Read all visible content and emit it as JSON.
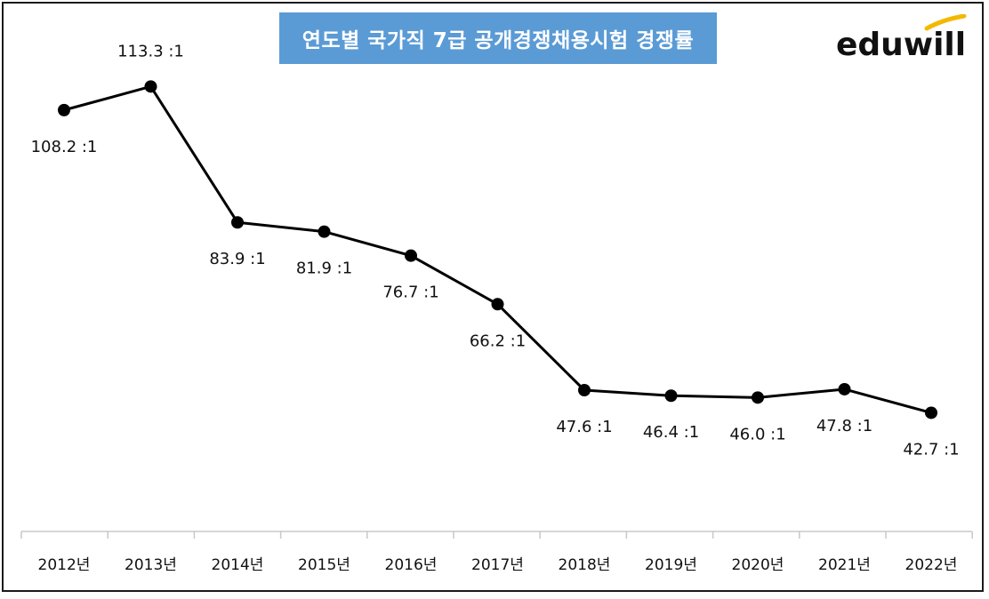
{
  "chart_data": {
    "type": "line",
    "title": "연도별 국가직 7급 공개경쟁채용시험 경쟁률",
    "categories": [
      "2012년",
      "2013년",
      "2014년",
      "2015년",
      "2016년",
      "2017년",
      "2018년",
      "2019년",
      "2020년",
      "2021년",
      "2022년"
    ],
    "values": [
      108.2,
      113.3,
      83.9,
      81.9,
      76.7,
      66.2,
      47.6,
      46.4,
      46.0,
      47.8,
      42.7
    ],
    "data_labels": [
      "108.2 :1",
      "113.3 :1",
      "83.9 :1",
      "81.9 :1",
      "76.7 :1",
      "66.2 :1",
      "47.6 :1",
      "46.4 :1",
      "46.0 :1",
      "47.8 :1",
      "42.7 :1"
    ],
    "label_positions": [
      "below",
      "above",
      "below",
      "below",
      "below",
      "below",
      "below",
      "below",
      "below",
      "below",
      "below"
    ],
    "xlabel": "",
    "ylabel": "",
    "grid": false,
    "line_color": "#000000",
    "axis_color": "#c8c8c8"
  },
  "banner": {
    "bg_color": "#5b9bd5"
  },
  "logo": {
    "text": "eduwill",
    "accent_color": "#f5b800"
  }
}
